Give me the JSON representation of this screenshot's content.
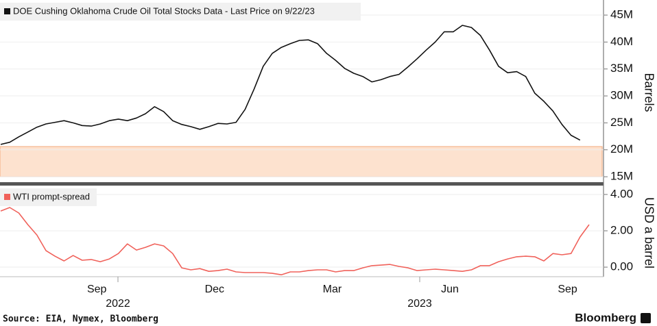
{
  "chart_data": [
    {
      "type": "line",
      "ylim": [
        14500000,
        47800000
      ],
      "yticks": [
        {
          "value": 15000000,
          "label": "15M"
        },
        {
          "value": 20000000,
          "label": "20M"
        },
        {
          "value": 25000000,
          "label": "25M"
        },
        {
          "value": 30000000,
          "label": "30M"
        },
        {
          "value": 35000000,
          "label": "35M"
        },
        {
          "value": 40000000,
          "label": "40M"
        },
        {
          "value": 45000000,
          "label": "45M"
        }
      ],
      "y_label": "Barrels",
      "shaded_range": [
        15000000,
        20600000
      ],
      "series": [
        {
          "name": "DOE Cushing Oklahoma Crude Oil Total Stocks Data - Last Price on 9/22/23",
          "color": "#111111",
          "values": [
            21000000,
            21400000,
            22400000,
            23300000,
            24200000,
            24800000,
            25100000,
            25400000,
            25000000,
            24500000,
            24400000,
            24800000,
            25400000,
            25700000,
            25400000,
            25900000,
            26700000,
            28000000,
            27100000,
            25400000,
            24700000,
            24300000,
            23800000,
            24300000,
            24900000,
            24800000,
            25100000,
            27500000,
            31300000,
            35500000,
            37900000,
            39000000,
            39700000,
            40300000,
            40400000,
            39700000,
            37900000,
            36600000,
            35100000,
            34200000,
            33600000,
            32600000,
            33000000,
            33600000,
            34000000,
            35400000,
            36900000,
            38500000,
            40000000,
            41900000,
            41900000,
            43100000,
            42700000,
            41200000,
            38500000,
            35500000,
            34300000,
            34500000,
            33600000,
            30500000,
            29000000,
            27200000,
            24700000,
            22700000,
            21800000
          ]
        }
      ]
    },
    {
      "type": "line",
      "categories": [
        null,
        null,
        null,
        null,
        null,
        null,
        null,
        null,
        null,
        null,
        null,
        "Sep",
        null,
        null,
        null,
        null,
        null,
        null,
        null,
        null,
        null,
        null,
        null,
        null,
        "Dec",
        null,
        null,
        null,
        null,
        null,
        null,
        null,
        null,
        null,
        null,
        null,
        null,
        "Mar",
        null,
        null,
        null,
        null,
        null,
        null,
        null,
        null,
        null,
        null,
        null,
        null,
        "Jun",
        null,
        null,
        null,
        null,
        null,
        null,
        null,
        null,
        null,
        null,
        null,
        null,
        "Sep",
        null,
        null
      ],
      "x_group_labels": [
        "2022",
        "2023"
      ],
      "ylim": [
        -0.45,
        4.45
      ],
      "yticks": [
        {
          "value": 0,
          "label": "0.00"
        },
        {
          "value": 2,
          "label": "2.00"
        },
        {
          "value": 4,
          "label": "4.00"
        }
      ],
      "y_label": "USD a barrel",
      "series": [
        {
          "name": "WTI prompt-spread",
          "color": "#f0615a",
          "values": [
            3.09,
            3.28,
            2.98,
            2.34,
            1.77,
            0.91,
            0.6,
            0.34,
            0.64,
            0.38,
            0.42,
            0.3,
            0.45,
            0.75,
            1.28,
            0.94,
            1.09,
            1.28,
            1.17,
            0.75,
            -0.04,
            -0.15,
            -0.08,
            -0.23,
            -0.19,
            -0.11,
            -0.26,
            -0.3,
            -0.3,
            -0.3,
            -0.34,
            -0.42,
            -0.26,
            -0.26,
            -0.19,
            -0.15,
            -0.15,
            -0.26,
            -0.19,
            -0.19,
            -0.04,
            0.08,
            0.11,
            0.15,
            0.04,
            -0.04,
            -0.19,
            -0.15,
            -0.11,
            -0.15,
            -0.19,
            -0.23,
            -0.15,
            0.08,
            0.08,
            0.3,
            0.45,
            0.57,
            0.6,
            0.57,
            0.34,
            0.75,
            0.68,
            0.75,
            1.66,
            2.34
          ]
        }
      ]
    }
  ],
  "footer": {
    "source": "Source: EIA, Nymex, Bloomberg",
    "brand": "Bloomberg"
  }
}
